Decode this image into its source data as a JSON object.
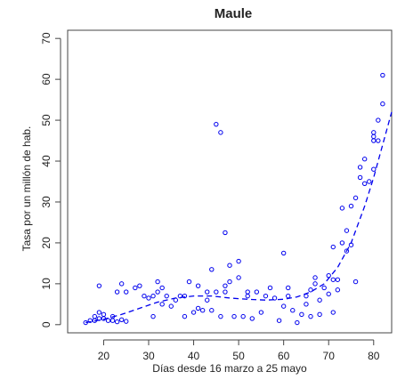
{
  "chart_data": {
    "type": "scatter",
    "title": "Maule",
    "xlabel": "Días desde 16 marzo a 25 mayo",
    "ylabel": "Tasa por un millón de hab.",
    "xlim": [
      12,
      84
    ],
    "ylim": [
      -2,
      72
    ],
    "x_ticks": [
      "20",
      "30",
      "40",
      "50",
      "60",
      "70",
      "80"
    ],
    "y_ticks": [
      "0",
      "10",
      "20",
      "30",
      "40",
      "50",
      "60",
      "70"
    ],
    "grid": false,
    "series": [
      {
        "kind": "points",
        "color": "#0000ee",
        "points": [
          [
            16,
            0.5
          ],
          [
            17,
            1
          ],
          [
            18,
            1
          ],
          [
            18,
            2
          ],
          [
            19,
            1.5
          ],
          [
            19,
            3
          ],
          [
            20,
            1.5
          ],
          [
            20,
            2.5
          ],
          [
            21,
            1
          ],
          [
            22,
            2
          ],
          [
            22,
            1
          ],
          [
            23,
            0.7
          ],
          [
            24,
            1.2
          ],
          [
            25,
            0.8
          ],
          [
            19,
            9.5
          ],
          [
            23,
            8
          ],
          [
            24,
            10
          ],
          [
            25,
            8
          ],
          [
            27,
            9
          ],
          [
            28,
            9.5
          ],
          [
            29,
            7
          ],
          [
            30,
            6.5
          ],
          [
            31,
            7
          ],
          [
            32,
            8
          ],
          [
            32,
            10.5
          ],
          [
            33,
            9
          ],
          [
            34,
            7
          ],
          [
            31,
            2
          ],
          [
            33,
            5
          ],
          [
            35,
            4.5
          ],
          [
            36,
            6
          ],
          [
            37,
            7
          ],
          [
            38,
            7
          ],
          [
            38,
            2
          ],
          [
            39,
            10.5
          ],
          [
            40,
            3
          ],
          [
            41,
            4
          ],
          [
            41,
            9.5
          ],
          [
            42,
            3.5
          ],
          [
            43,
            6
          ],
          [
            43,
            8
          ],
          [
            44,
            13.5
          ],
          [
            44,
            3.5
          ],
          [
            45,
            8
          ],
          [
            46,
            2
          ],
          [
            47,
            8
          ],
          [
            47,
            9.5
          ],
          [
            48,
            10.5
          ],
          [
            49,
            2
          ],
          [
            50,
            11.5
          ],
          [
            51,
            2
          ],
          [
            52,
            7
          ],
          [
            52,
            8
          ],
          [
            45,
            49
          ],
          [
            46,
            47
          ],
          [
            47,
            22.5
          ],
          [
            48,
            14.5
          ],
          [
            50,
            15.5
          ],
          [
            53,
            1.5
          ],
          [
            54,
            8
          ],
          [
            55,
            3
          ],
          [
            56,
            7
          ],
          [
            57,
            9
          ],
          [
            58,
            6.5
          ],
          [
            59,
            1
          ],
          [
            60,
            4.5
          ],
          [
            60,
            17.5
          ],
          [
            61,
            7
          ],
          [
            61,
            9
          ],
          [
            62,
            3.5
          ],
          [
            63,
            0.5
          ],
          [
            64,
            2.5
          ],
          [
            65,
            5
          ],
          [
            65,
            7
          ],
          [
            66,
            8.5
          ],
          [
            66,
            2
          ],
          [
            67,
            10
          ],
          [
            67,
            11.5
          ],
          [
            68,
            6
          ],
          [
            68,
            2.5
          ],
          [
            69,
            9
          ],
          [
            70,
            7.5
          ],
          [
            71,
            3
          ],
          [
            70,
            12
          ],
          [
            71,
            11
          ],
          [
            71,
            19
          ],
          [
            72,
            11
          ],
          [
            72,
            8.5
          ],
          [
            73,
            20
          ],
          [
            73,
            28.5
          ],
          [
            74,
            18
          ],
          [
            74,
            23
          ],
          [
            75,
            19.5
          ],
          [
            75,
            29
          ],
          [
            76,
            10.5
          ],
          [
            76,
            31
          ],
          [
            77,
            36
          ],
          [
            77,
            38.5
          ],
          [
            78,
            40.5
          ],
          [
            78,
            34.5
          ],
          [
            79,
            35
          ],
          [
            80,
            45
          ],
          [
            80,
            46
          ],
          [
            80,
            47
          ],
          [
            80,
            38
          ],
          [
            81,
            45
          ],
          [
            81,
            50
          ],
          [
            82,
            54
          ],
          [
            82,
            61
          ]
        ]
      },
      {
        "kind": "trend",
        "style": "dashed",
        "color": "#0000ee",
        "points": [
          [
            16,
            0.5
          ],
          [
            20,
            1.3
          ],
          [
            24,
            2.5
          ],
          [
            28,
            4
          ],
          [
            32,
            5.5
          ],
          [
            36,
            6.5
          ],
          [
            40,
            7
          ],
          [
            44,
            7
          ],
          [
            48,
            6.5
          ],
          [
            52,
            6.2
          ],
          [
            56,
            6
          ],
          [
            60,
            6.2
          ],
          [
            63,
            6.8
          ],
          [
            66,
            8
          ],
          [
            69,
            10
          ],
          [
            72,
            14
          ],
          [
            75,
            20
          ],
          [
            78,
            29
          ],
          [
            80,
            36
          ],
          [
            82,
            44
          ],
          [
            84,
            52
          ]
        ]
      }
    ]
  }
}
